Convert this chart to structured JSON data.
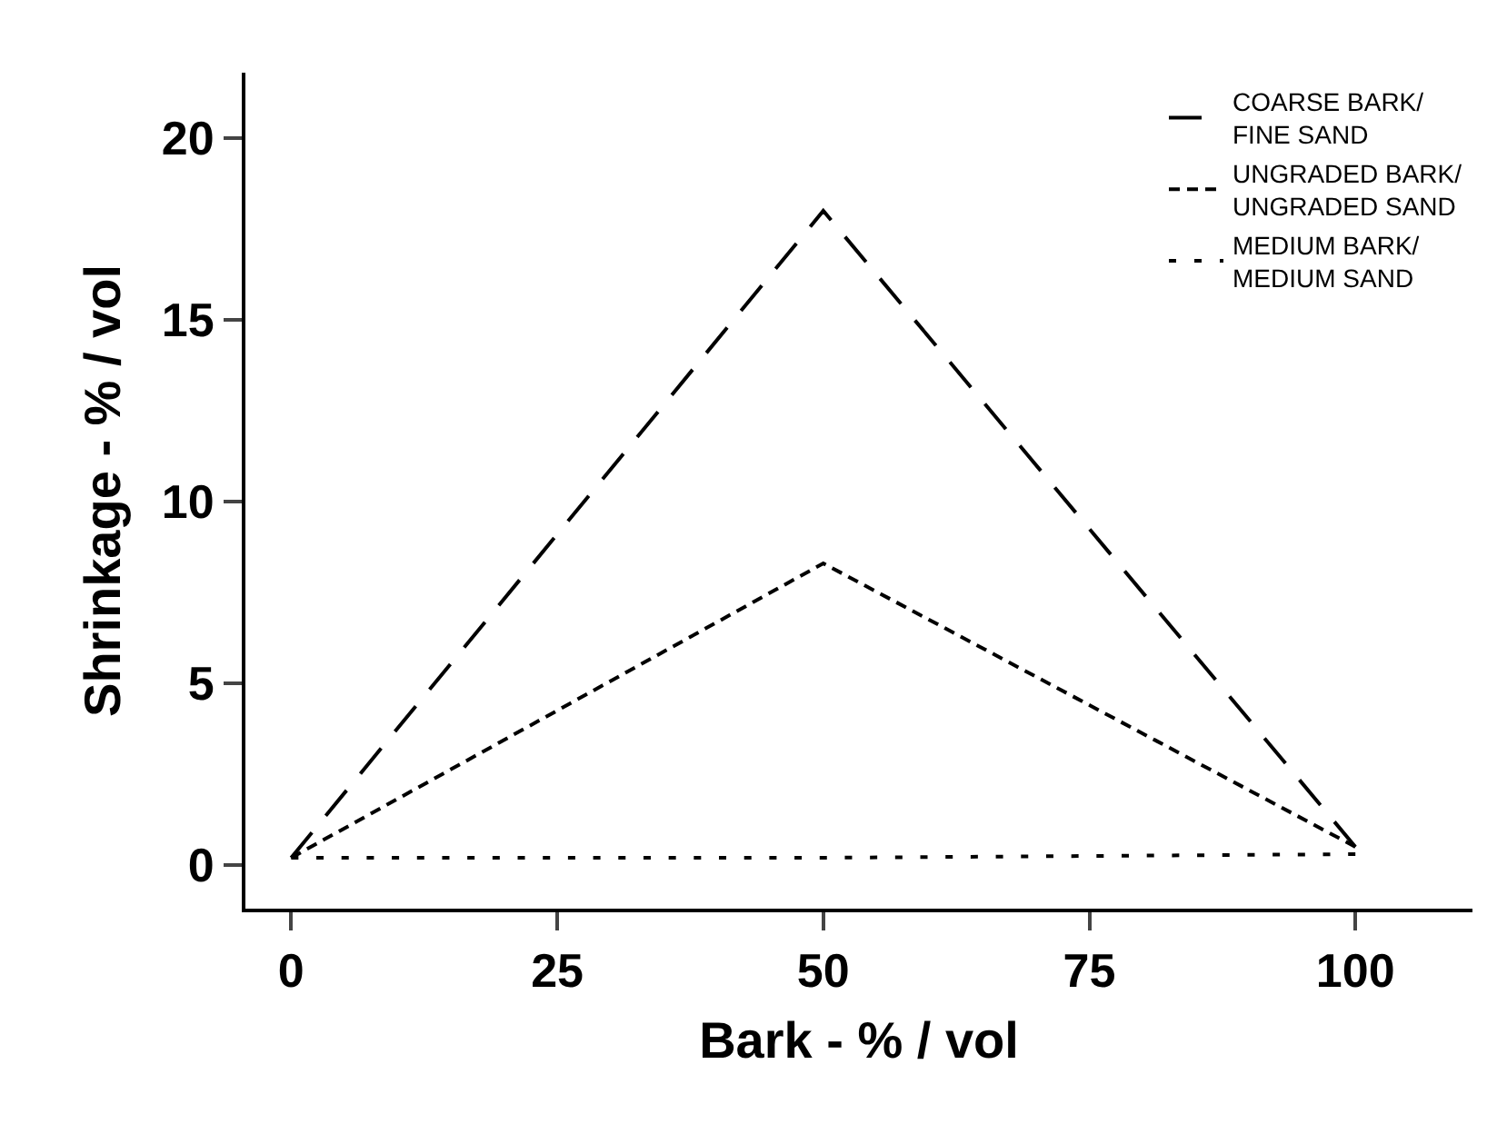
{
  "chart_data": {
    "type": "line",
    "xlabel": "Bark - % / vol",
    "ylabel": "Shrinkage - % / vol",
    "x": [
      0,
      50,
      100
    ],
    "series": [
      {
        "name": "COARSE BARK/\nFINE SAND",
        "color": "#000000",
        "line_style": "dashed",
        "values": [
          0.2,
          18,
          0.5
        ]
      },
      {
        "name": "UNGRADED BARK/\nUNGRADED SAND",
        "color": "#000000",
        "line_style": "short-dashed",
        "values": [
          0.2,
          8.3,
          0.5
        ]
      },
      {
        "name": "MEDIUM BARK/\nMEDIUM SAND",
        "color": "#000000",
        "line_style": "dotted",
        "values": [
          0.2,
          0.2,
          0.3
        ]
      }
    ],
    "xlim": [
      -4.3,
      111
    ],
    "xticks": [
      0,
      25,
      50,
      75,
      100
    ],
    "ylim": [
      -1.2,
      21.8
    ],
    "yticks": [
      0,
      5,
      10,
      15,
      20
    ],
    "grid": false,
    "legend": "top right",
    "marker": "none"
  }
}
